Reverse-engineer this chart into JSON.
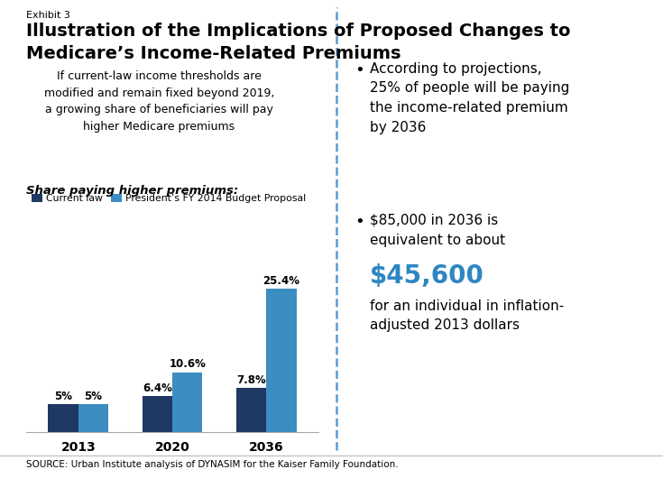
{
  "exhibit_label": "Exhibit 3",
  "title_line1": "Illustration of the Implications of Proposed Changes to",
  "title_line2": "Medicare’s Income-Related Premiums",
  "left_intro": "If current-law income thresholds are\nmodified and remain fixed beyond 2019,\na growing share of beneficiaries will pay\nhigher Medicare premiums",
  "bar_section_title": "Share paying higher premiums:",
  "legend_current": "Current law",
  "legend_proposal": "President’s FY 2014 Budget Proposal",
  "years": [
    "2013",
    "2020",
    "2036"
  ],
  "current_law_values": [
    5.0,
    6.4,
    7.8
  ],
  "proposal_values": [
    5.0,
    10.6,
    25.4
  ],
  "current_law_labels": [
    "5%",
    "6.4%",
    "7.8%"
  ],
  "proposal_labels": [
    "5%",
    "10.6%",
    "25.4%"
  ],
  "color_current": "#1f3864",
  "color_proposal": "#3b8dc2",
  "bullet1_text": "According to projections,\n25% of people will be paying\nthe income-related premium\nby 2036",
  "bullet2_text1": "$85,000 in 2036 is\nequivalent to about",
  "highlight_amount": "$45,600",
  "bullet2_text2": "for an individual in inflation-\nadjusted 2013 dollars",
  "highlight_color": "#2e86c1",
  "source_text": "SOURCE: Urban Institute analysis of DYNASIM for the Kaiser Family Foundation.",
  "background_color": "#ffffff",
  "divider_color": "#5b9bd5",
  "bar_width": 0.32
}
